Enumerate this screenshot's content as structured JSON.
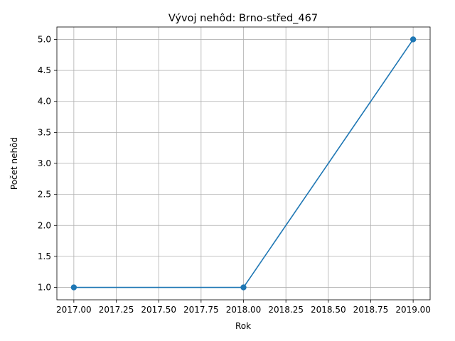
{
  "chart_data": {
    "type": "line",
    "title": "Vývoj nehôd: Brno-střed_467",
    "xlabel": "Rok",
    "ylabel": "Počet nehôd",
    "x": [
      2017,
      2018,
      2019
    ],
    "series": [
      {
        "values": [
          1,
          1,
          5
        ],
        "color": "#1f77b4",
        "marker": "circle"
      }
    ],
    "xlim": [
      2016.9,
      2019.1
    ],
    "ylim": [
      0.8,
      5.2
    ],
    "xticks": [
      2017.0,
      2017.25,
      2017.5,
      2017.75,
      2018.0,
      2018.25,
      2018.5,
      2018.75,
      2019.0
    ],
    "xtick_labels": [
      "2017.00",
      "2017.25",
      "2017.50",
      "2017.75",
      "2018.00",
      "2018.25",
      "2018.50",
      "2018.75",
      "2019.00"
    ],
    "yticks": [
      1.0,
      1.5,
      2.0,
      2.5,
      3.0,
      3.5,
      4.0,
      4.5,
      5.0
    ],
    "ytick_labels": [
      "1.0",
      "1.5",
      "2.0",
      "2.5",
      "3.0",
      "3.5",
      "4.0",
      "4.5",
      "5.0"
    ],
    "grid": true,
    "grid_color": "#b0b0b0"
  }
}
